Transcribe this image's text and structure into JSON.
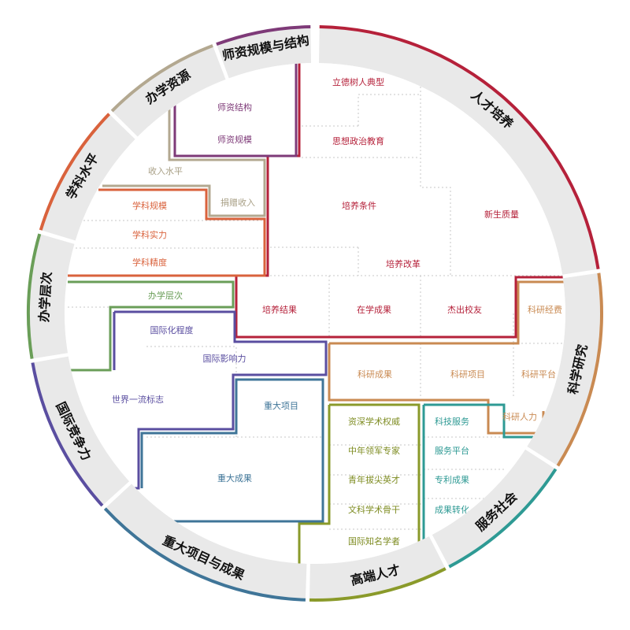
{
  "colors": {
    "rencai_peiyang": "#b5213a",
    "keyan": "#c98a52",
    "fuwu_shehui": "#2e9a94",
    "gaoduan_rencai": "#8a9a2a",
    "zhongda_xiangmu": "#3f7598",
    "guoji_jingzheng": "#5a4ea0",
    "banxue_cengci": "#6a9e58",
    "xueke_shuiping": "#d9623c",
    "banxue_ziyuan": "#b3a890",
    "shizi": "#7e3a78"
  },
  "ring": [
    {
      "key": "rencai",
      "label": "人才培养"
    },
    {
      "key": "keyan",
      "label": "科学研究"
    },
    {
      "key": "fuwu",
      "label": "服务社会"
    },
    {
      "key": "gaoduan",
      "label": "高端人才"
    },
    {
      "key": "zhongda",
      "label": "重大项目与成果"
    },
    {
      "key": "guoji",
      "label": "国际竞争力"
    },
    {
      "key": "cengci",
      "label": "办学层次"
    },
    {
      "key": "xueke",
      "label": "学科水平"
    },
    {
      "key": "ziyuan",
      "label": "办学资源"
    },
    {
      "key": "shizi",
      "label": "师资规模与结构"
    }
  ],
  "cells": {
    "lideshuren": "立德树人典型",
    "sixiang": "思想政治教育",
    "xinsheng": "新生质量",
    "peiyang_tiaojian": "培养条件",
    "peiyang_gaige": "培养改革",
    "peiyang_jieguo": "培养结果",
    "zaixue": "在学成果",
    "jiechu": "杰出校友",
    "shizi_jiegou": "师资结构",
    "shizi_guimo": "师资规模",
    "shouru": "收入水平",
    "juanzeng": "捐赠收入",
    "xueke_guimo": "学科规模",
    "xueke_shili": "学科实力",
    "xueke_jingdu": "学科精度",
    "banxue_cengci": "办学层次",
    "guojihua": "国际化程度",
    "guoji_yingxiang": "国际影响力",
    "shijie_yiliu": "世界一流标志",
    "zhongda_xiangmu": "重大项目",
    "zhongda_chengguo": "重大成果",
    "zishen": "资深学术权威",
    "zhongnian": "中年领军专家",
    "qingnian": "青年拔尖英才",
    "wenke": "文科学术骨干",
    "guoji_zhiming": "国际知名学者",
    "keji_fuwu": "科技服务",
    "fuwu_pingtai": "服务平台",
    "zhuanli": "专利成果",
    "chengguo_zhuanhua": "成果转化",
    "keyan_jingfei": "科研经费",
    "keyan_chengguo": "科研成果",
    "keyan_xiangmu": "科研项目",
    "keyan_pingtai": "科研平台",
    "keyan_renli": "科研人力"
  }
}
